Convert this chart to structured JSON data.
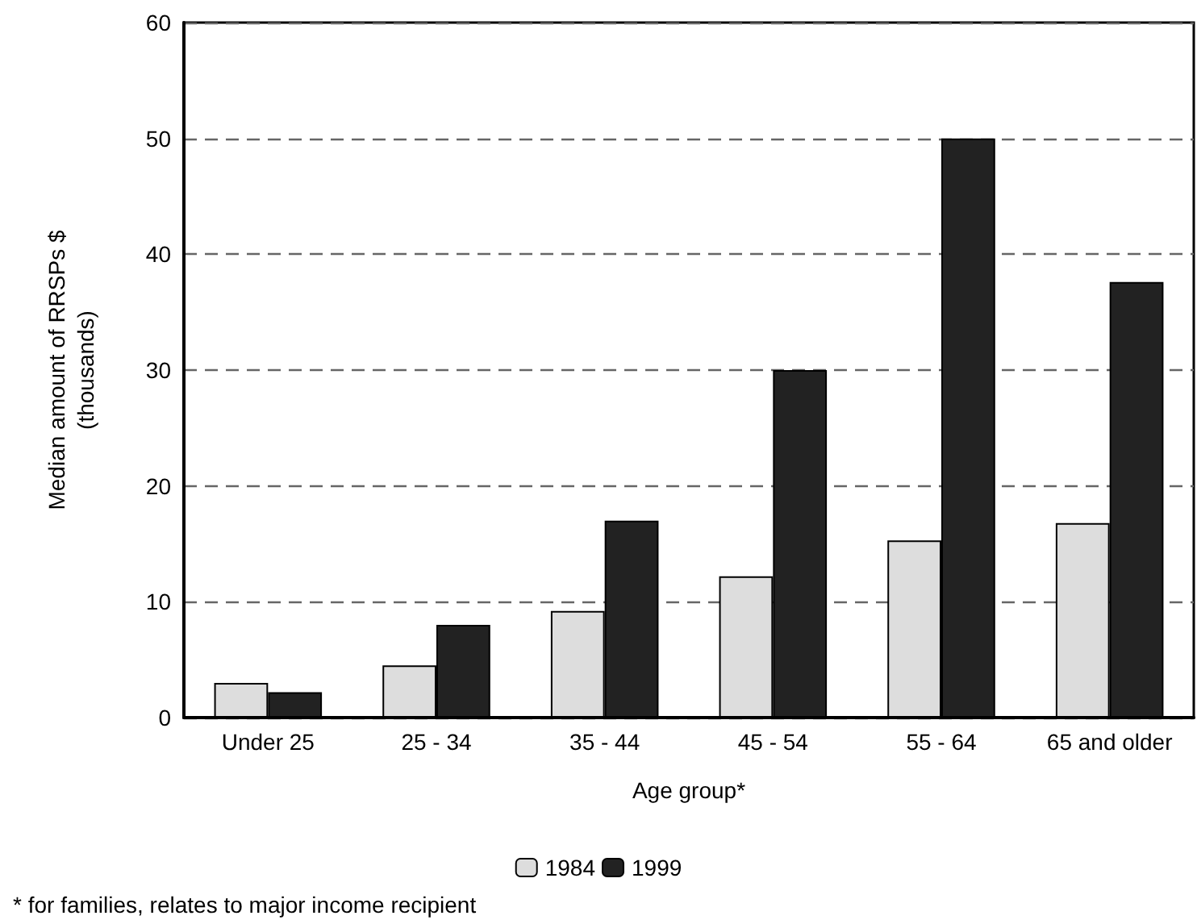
{
  "chart_data": {
    "type": "bar",
    "xlabel": "Age group*",
    "ylabel": "Median amount of RRSPs $\n(thousands)",
    "categories": [
      "Under 25",
      "25 - 34",
      "35 - 44",
      "45 - 54",
      "55 - 64",
      "65 and older"
    ],
    "series": [
      {
        "name": "1984",
        "color": "#dddddd",
        "values": [
          3.0,
          4.5,
          9.2,
          12.2,
          15.3,
          16.8
        ]
      },
      {
        "name": "1999",
        "color": "#222222",
        "values": [
          2.2,
          8.0,
          17.0,
          30.0,
          50.0,
          37.6
        ]
      }
    ],
    "ylim": [
      0,
      60
    ],
    "yticks": [
      0,
      10,
      20,
      30,
      40,
      50,
      60
    ],
    "grid": "y",
    "legend": "bottom",
    "annotations": [
      "* for families, relates to major income recipient"
    ]
  }
}
